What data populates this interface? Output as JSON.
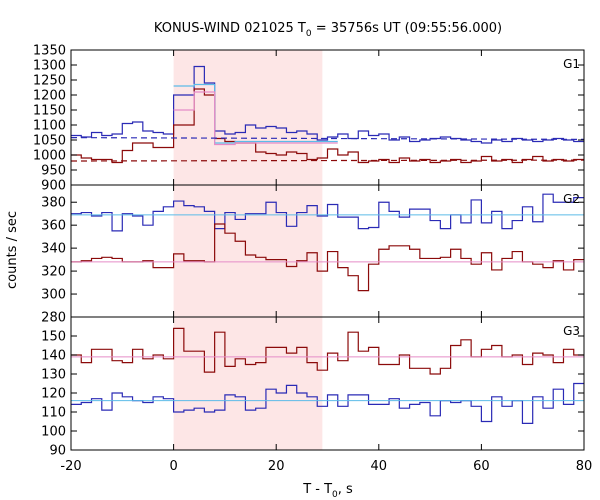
{
  "title": "KONUS-WIND 021025 T",
  "title_sub": "0",
  "title_rest": " = 35756s UT (09:55:56.000)",
  "ylabel": "counts / sec",
  "xlabel_main": "T - T",
  "xlabel_sub": "0",
  "xlabel_rest": ", s",
  "colors": {
    "blue": "#2a2ab5",
    "red": "#8b0a0a",
    "cyan": "#5bbbe8",
    "pink": "#e58cc8",
    "shade": "#fde6e6"
  },
  "chart_data": {
    "type": "line",
    "subtype": "step histogram, three stacked panels",
    "x": {
      "lim": [
        -20,
        80
      ],
      "ticks": [
        -20,
        0,
        20,
        40,
        60,
        80
      ],
      "tick_labels": [
        "-20",
        "0",
        "20",
        "40",
        "60",
        "80"
      ]
    },
    "shaded_interval": [
      0,
      29
    ],
    "bin_edges": [
      -20,
      -18,
      -16,
      -14,
      -12,
      -10,
      -8,
      -6,
      -4,
      -2,
      0,
      2,
      4,
      6,
      8,
      10,
      12,
      14,
      16,
      18,
      20,
      22,
      24,
      26,
      28,
      30,
      32,
      34,
      36,
      38,
      40,
      42,
      44,
      46,
      48,
      50,
      52,
      54,
      56,
      58,
      60,
      62,
      64,
      66,
      68,
      70,
      72,
      74,
      76,
      78,
      80
    ],
    "panels": [
      {
        "label": "G1",
        "ylim": [
          900,
          1350
        ],
        "yticks": [
          900,
          950,
          1000,
          1050,
          1100,
          1150,
          1200,
          1250,
          1300,
          1350
        ],
        "series": [
          {
            "color": "blue",
            "values": [
              1065,
              1060,
              1075,
              1065,
              1070,
              1105,
              1110,
              1080,
              1075,
              1070,
              1200,
              1200,
              1295,
              1240,
              1080,
              1070,
              1075,
              1100,
              1090,
              1095,
              1090,
              1075,
              1080,
              1070,
              1050,
              1060,
              1070,
              1055,
              1080,
              1065,
              1070,
              1050,
              1060,
              1045,
              1050,
              1055,
              1060,
              1055,
              1050,
              1045,
              1040,
              1050,
              1045,
              1055,
              1050,
              1045,
              1050,
              1055,
              1050,
              1045
            ]
          },
          {
            "color": "red",
            "values": [
              1000,
              990,
              985,
              985,
              975,
              1015,
              1040,
              1040,
              1025,
              1025,
              1100,
              1100,
              1220,
              1200,
              1055,
              1045,
              1040,
              1040,
              1010,
              1005,
              1000,
              1010,
              1005,
              985,
              990,
              1020,
              1000,
              1010,
              975,
              980,
              985,
              975,
              990,
              980,
              985,
              975,
              980,
              985,
              975,
              980,
              995,
              980,
              985,
              975,
              985,
              995,
              980,
              985,
              980,
              985
            ]
          },
          {
            "color": "cyan",
            "type": "step",
            "values": [
              null,
              null,
              null,
              null,
              null,
              null,
              null,
              null,
              null,
              null,
              1230,
              1230,
              1235,
              1235,
              1040,
              1040,
              1045,
              1045,
              1045,
              1045,
              1045,
              1045,
              1045,
              1045,
              1045,
              1045,
              null,
              null,
              null,
              null,
              null,
              null,
              null,
              null,
              null,
              null,
              null,
              null,
              null,
              null,
              null,
              null,
              null,
              null,
              null,
              null,
              null,
              null,
              null,
              null
            ]
          },
          {
            "color": "pink",
            "type": "step",
            "values": [
              null,
              null,
              null,
              null,
              null,
              null,
              null,
              null,
              null,
              null,
              1150,
              1150,
              1210,
              1210,
              1035,
              1035,
              1040,
              1040,
              1040,
              1040,
              1040,
              1040,
              1040,
              1040,
              1040,
              1040,
              null,
              null,
              null,
              null,
              null,
              null,
              null,
              null,
              null,
              null,
              null,
              null,
              null,
              null,
              null,
              null,
              null,
              null,
              null,
              null,
              null,
              null,
              null,
              null
            ]
          },
          {
            "color": "blue",
            "type": "dashed",
            "from": -20,
            "to": 80,
            "y1": 1058,
            "y2": 1052
          },
          {
            "color": "red",
            "type": "dashed",
            "from": -20,
            "to": 80,
            "y1": 980,
            "y2": 983
          }
        ]
      },
      {
        "label": "G2",
        "ylim": [
          280,
          395
        ],
        "yticks": [
          280,
          300,
          320,
          340,
          360,
          380
        ],
        "series": [
          {
            "color": "blue",
            "values": [
              370,
              371,
              368,
              371,
              355,
              370,
              368,
              360,
              372,
              376,
              381,
              377,
              376,
              372,
              357,
              371,
              365,
              370,
              370,
              380,
              371,
              359,
              371,
              377,
              368,
              378,
              367,
              367,
              357,
              358,
              380,
              372,
              367,
              374,
              374,
              364,
              357,
              369,
              362,
              382,
              362,
              372,
              357,
              364,
              376,
              363,
              387,
              380,
              380,
              384
            ]
          },
          {
            "color": "red",
            "values": [
              328,
              329,
              331,
              332,
              331,
              328,
              328,
              329,
              323,
              323,
              335,
              329,
              329,
              328,
              361,
              353,
              346,
              334,
              332,
              330,
              330,
              324,
              329,
              336,
              320,
              337,
              323,
              316,
              303,
              326,
              339,
              342,
              342,
              339,
              331,
              331,
              332,
              339,
              331,
              326,
              336,
              321,
              331,
              337,
              328,
              326,
              323,
              329,
              321,
              330
            ]
          },
          {
            "color": "cyan",
            "type": "flat",
            "from": -20,
            "to": 80,
            "y": 369
          },
          {
            "color": "pink",
            "type": "flat",
            "from": -20,
            "to": 80,
            "y": 328
          }
        ]
      },
      {
        "label": "G3",
        "ylim": [
          90,
          160
        ],
        "yticks": [
          90,
          100,
          110,
          120,
          130,
          140,
          150
        ],
        "series": [
          {
            "color": "blue",
            "values": [
              114,
              115,
              117,
              111,
              120,
              118,
              116,
              115,
              118,
              117,
              110,
              111,
              112,
              110,
              111,
              119,
              118,
              111,
              112,
              122,
              120,
              124,
              120,
              118,
              113,
              119,
              113,
              119,
              119,
              114,
              114,
              117,
              112,
              114,
              115,
              108,
              116,
              115,
              116,
              113,
              105,
              118,
              113,
              116,
              104,
              118,
              112,
              122,
              114,
              125
            ]
          },
          {
            "color": "red",
            "values": [
              140,
              136,
              143,
              143,
              137,
              136,
              143,
              138,
              140,
              138,
              154,
              142,
              142,
              131,
              152,
              134,
              138,
              135,
              136,
              144,
              144,
              141,
              144,
              136,
              132,
              141,
              137,
              152,
              142,
              144,
              135,
              135,
              140,
              133,
              133,
              130,
              133,
              145,
              148,
              139,
              143,
              145,
              139,
              140,
              135,
              141,
              140,
              136,
              143,
              140
            ]
          },
          {
            "color": "cyan",
            "type": "flat",
            "from": -20,
            "to": 80,
            "y": 116
          },
          {
            "color": "pink",
            "type": "flat",
            "from": -20,
            "to": 80,
            "y": 139
          }
        ]
      }
    ]
  }
}
